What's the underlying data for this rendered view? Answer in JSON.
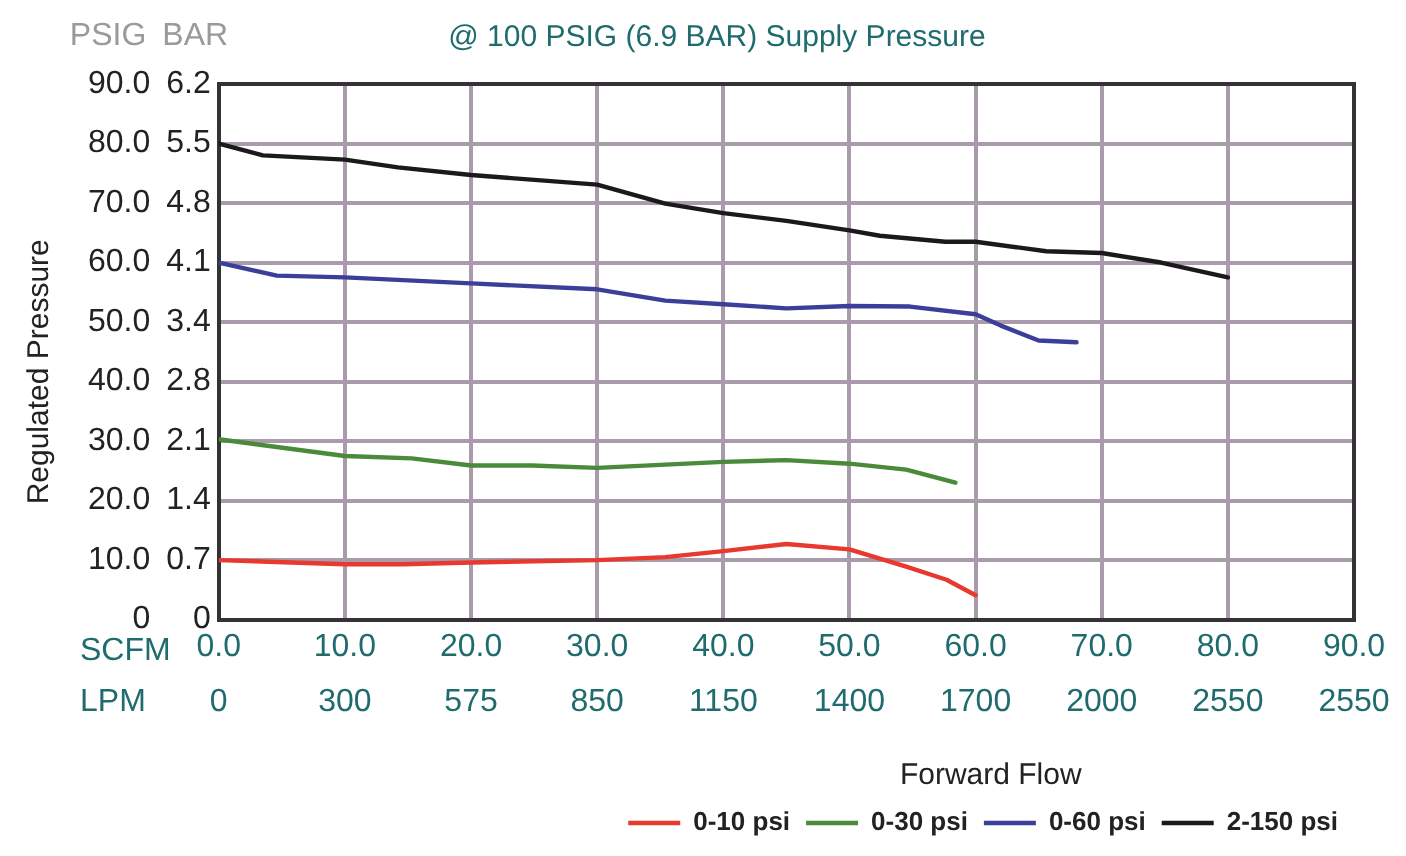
{
  "chart_data": {
    "type": "line",
    "title": "@ 100 PSIG (6.9 BAR) Supply Pressure",
    "xlabel": "Forward Flow",
    "ylabel": "Regulated Pressure",
    "annotations": [
      "PSIG",
      "BAR",
      "SCFM",
      "LPM",
      "0",
      "300",
      "575",
      "850",
      "1150",
      "1400",
      "1700",
      "2000",
      "2550",
      "2550"
    ],
    "xlim": [
      0,
      90
    ],
    "xticks": [
      {
        "value": 0,
        "label": "0.0"
      },
      {
        "value": 10,
        "label": "10.0"
      },
      {
        "value": 20,
        "label": "20.0"
      },
      {
        "value": 30,
        "label": "30.0"
      },
      {
        "value": 40,
        "label": "40.0"
      },
      {
        "value": 50,
        "label": "50.0"
      },
      {
        "value": 60,
        "label": "60.0"
      },
      {
        "value": 70,
        "label": "70.0"
      },
      {
        "value": 80,
        "label": "80.0"
      },
      {
        "value": 90,
        "label": "90.0"
      }
    ],
    "ylim": [
      0,
      90
    ],
    "yticks": [
      0,
      {
        "value": 10,
        "label": "10.0"
      },
      {
        "value": 20,
        "label": "20.0"
      },
      {
        "value": 30,
        "label": "30.0"
      },
      {
        "value": 40,
        "label": "40.0"
      },
      {
        "value": 50,
        "label": "50.0"
      },
      {
        "value": 60,
        "label": "60.0"
      },
      {
        "value": 70,
        "label": "70.0"
      },
      {
        "value": 80,
        "label": "80.0"
      },
      {
        "value": 90,
        "label": "90.0"
      }
    ],
    "y2lim": [
      0,
      6.205
    ],
    "y2ticks": [
      0,
      {
        "value": 0.689,
        "label": "0.7"
      },
      {
        "value": 1.379,
        "label": "1.4"
      },
      {
        "value": 2.068,
        "label": "2.1"
      },
      {
        "value": 2.758,
        "label": "2.8"
      },
      {
        "value": 3.447,
        "label": "3.4"
      },
      {
        "value": 4.137,
        "label": "4.1"
      },
      {
        "value": 4.826,
        "label": "4.8"
      },
      {
        "value": 5.516,
        "label": "5.5"
      },
      {
        "value": 6.205,
        "label": "6.2"
      }
    ],
    "grid": true,
    "legend": "bottom right",
    "marker": "none",
    "line_style": "solid",
    "series": [
      {
        "name": "0-10 psi",
        "color": "#e8392f",
        "x": [
          0,
          10,
          14.6,
          20,
          30,
          35.4,
          40,
          45,
          50,
          54.5,
          57.7,
          60
        ],
        "values": [
          10.0,
          9.3,
          9.3,
          9.6,
          10.0,
          10.5,
          11.5,
          12.7,
          11.8,
          8.9,
          6.7,
          4.1
        ]
      },
      {
        "name": "0-30 psi",
        "color": "#4a8a3a",
        "x": [
          0,
          10,
          15.3,
          20,
          24.8,
          30,
          40,
          45,
          50,
          54.5,
          58.4
        ],
        "values": [
          30.3,
          27.5,
          27.1,
          25.9,
          25.9,
          25.5,
          26.5,
          26.8,
          26.2,
          25.2,
          23.0
        ]
      },
      {
        "name": "0-60 psi",
        "color": "#3b3f9a",
        "x": [
          0,
          4.6,
          10,
          20,
          30,
          35.4,
          40,
          45,
          50,
          54.8,
          60,
          62,
          65,
          68
        ],
        "values": [
          60.0,
          57.8,
          57.5,
          56.5,
          55.5,
          53.6,
          53.0,
          52.3,
          52.7,
          52.6,
          51.3,
          49.4,
          46.9,
          46.6
        ]
      },
      {
        "name": "2-150 psi",
        "color": "#1a1a1a",
        "x": [
          0,
          3.5,
          10,
          14.2,
          20,
          30,
          35.4,
          40,
          45,
          50,
          52.4,
          57.6,
          60,
          65.6,
          70,
          74.7,
          80
        ],
        "values": [
          80.0,
          78.0,
          77.3,
          76.0,
          74.7,
          73.1,
          69.9,
          68.3,
          67.0,
          65.4,
          64.5,
          63.5,
          63.5,
          61.9,
          61.6,
          60.0,
          57.5
        ]
      }
    ]
  }
}
